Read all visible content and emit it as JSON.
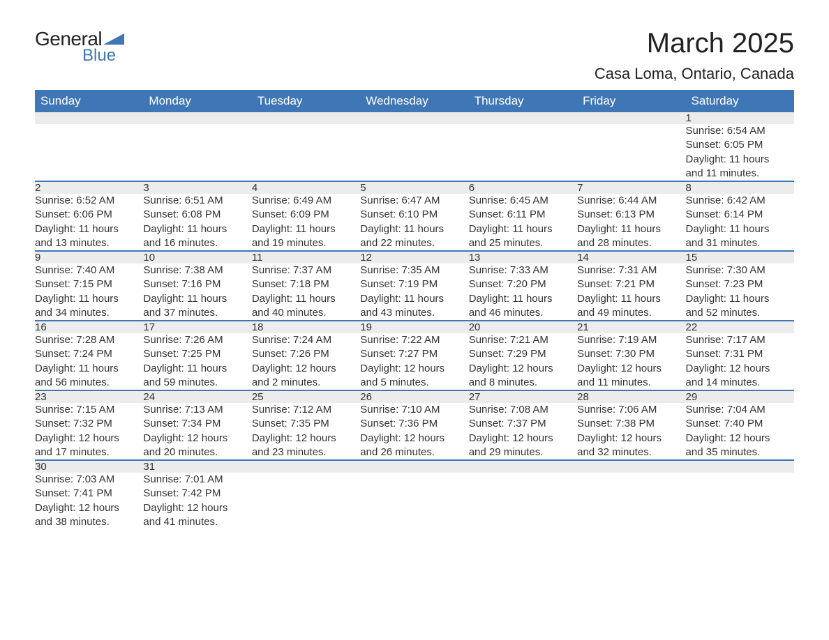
{
  "logo": {
    "general": "General",
    "blue": "Blue",
    "triangle_color": "#3f76b5"
  },
  "title": {
    "month": "March 2025",
    "location": "Casa Loma, Ontario, Canada"
  },
  "calendar": {
    "header_bg": "#3f76b5",
    "header_fg": "#ffffff",
    "row_border_color": "#3f76b5",
    "daynum_bg": "#ececec",
    "text_color": "#333333",
    "days_of_week": [
      "Sunday",
      "Monday",
      "Tuesday",
      "Wednesday",
      "Thursday",
      "Friday",
      "Saturday"
    ],
    "weeks": [
      [
        null,
        null,
        null,
        null,
        null,
        null,
        {
          "n": "1",
          "sunrise": "Sunrise: 6:54 AM",
          "sunset": "Sunset: 6:05 PM",
          "dl1": "Daylight: 11 hours",
          "dl2": "and 11 minutes."
        }
      ],
      [
        {
          "n": "2",
          "sunrise": "Sunrise: 6:52 AM",
          "sunset": "Sunset: 6:06 PM",
          "dl1": "Daylight: 11 hours",
          "dl2": "and 13 minutes."
        },
        {
          "n": "3",
          "sunrise": "Sunrise: 6:51 AM",
          "sunset": "Sunset: 6:08 PM",
          "dl1": "Daylight: 11 hours",
          "dl2": "and 16 minutes."
        },
        {
          "n": "4",
          "sunrise": "Sunrise: 6:49 AM",
          "sunset": "Sunset: 6:09 PM",
          "dl1": "Daylight: 11 hours",
          "dl2": "and 19 minutes."
        },
        {
          "n": "5",
          "sunrise": "Sunrise: 6:47 AM",
          "sunset": "Sunset: 6:10 PM",
          "dl1": "Daylight: 11 hours",
          "dl2": "and 22 minutes."
        },
        {
          "n": "6",
          "sunrise": "Sunrise: 6:45 AM",
          "sunset": "Sunset: 6:11 PM",
          "dl1": "Daylight: 11 hours",
          "dl2": "and 25 minutes."
        },
        {
          "n": "7",
          "sunrise": "Sunrise: 6:44 AM",
          "sunset": "Sunset: 6:13 PM",
          "dl1": "Daylight: 11 hours",
          "dl2": "and 28 minutes."
        },
        {
          "n": "8",
          "sunrise": "Sunrise: 6:42 AM",
          "sunset": "Sunset: 6:14 PM",
          "dl1": "Daylight: 11 hours",
          "dl2": "and 31 minutes."
        }
      ],
      [
        {
          "n": "9",
          "sunrise": "Sunrise: 7:40 AM",
          "sunset": "Sunset: 7:15 PM",
          "dl1": "Daylight: 11 hours",
          "dl2": "and 34 minutes."
        },
        {
          "n": "10",
          "sunrise": "Sunrise: 7:38 AM",
          "sunset": "Sunset: 7:16 PM",
          "dl1": "Daylight: 11 hours",
          "dl2": "and 37 minutes."
        },
        {
          "n": "11",
          "sunrise": "Sunrise: 7:37 AM",
          "sunset": "Sunset: 7:18 PM",
          "dl1": "Daylight: 11 hours",
          "dl2": "and 40 minutes."
        },
        {
          "n": "12",
          "sunrise": "Sunrise: 7:35 AM",
          "sunset": "Sunset: 7:19 PM",
          "dl1": "Daylight: 11 hours",
          "dl2": "and 43 minutes."
        },
        {
          "n": "13",
          "sunrise": "Sunrise: 7:33 AM",
          "sunset": "Sunset: 7:20 PM",
          "dl1": "Daylight: 11 hours",
          "dl2": "and 46 minutes."
        },
        {
          "n": "14",
          "sunrise": "Sunrise: 7:31 AM",
          "sunset": "Sunset: 7:21 PM",
          "dl1": "Daylight: 11 hours",
          "dl2": "and 49 minutes."
        },
        {
          "n": "15",
          "sunrise": "Sunrise: 7:30 AM",
          "sunset": "Sunset: 7:23 PM",
          "dl1": "Daylight: 11 hours",
          "dl2": "and 52 minutes."
        }
      ],
      [
        {
          "n": "16",
          "sunrise": "Sunrise: 7:28 AM",
          "sunset": "Sunset: 7:24 PM",
          "dl1": "Daylight: 11 hours",
          "dl2": "and 56 minutes."
        },
        {
          "n": "17",
          "sunrise": "Sunrise: 7:26 AM",
          "sunset": "Sunset: 7:25 PM",
          "dl1": "Daylight: 11 hours",
          "dl2": "and 59 minutes."
        },
        {
          "n": "18",
          "sunrise": "Sunrise: 7:24 AM",
          "sunset": "Sunset: 7:26 PM",
          "dl1": "Daylight: 12 hours",
          "dl2": "and 2 minutes."
        },
        {
          "n": "19",
          "sunrise": "Sunrise: 7:22 AM",
          "sunset": "Sunset: 7:27 PM",
          "dl1": "Daylight: 12 hours",
          "dl2": "and 5 minutes."
        },
        {
          "n": "20",
          "sunrise": "Sunrise: 7:21 AM",
          "sunset": "Sunset: 7:29 PM",
          "dl1": "Daylight: 12 hours",
          "dl2": "and 8 minutes."
        },
        {
          "n": "21",
          "sunrise": "Sunrise: 7:19 AM",
          "sunset": "Sunset: 7:30 PM",
          "dl1": "Daylight: 12 hours",
          "dl2": "and 11 minutes."
        },
        {
          "n": "22",
          "sunrise": "Sunrise: 7:17 AM",
          "sunset": "Sunset: 7:31 PM",
          "dl1": "Daylight: 12 hours",
          "dl2": "and 14 minutes."
        }
      ],
      [
        {
          "n": "23",
          "sunrise": "Sunrise: 7:15 AM",
          "sunset": "Sunset: 7:32 PM",
          "dl1": "Daylight: 12 hours",
          "dl2": "and 17 minutes."
        },
        {
          "n": "24",
          "sunrise": "Sunrise: 7:13 AM",
          "sunset": "Sunset: 7:34 PM",
          "dl1": "Daylight: 12 hours",
          "dl2": "and 20 minutes."
        },
        {
          "n": "25",
          "sunrise": "Sunrise: 7:12 AM",
          "sunset": "Sunset: 7:35 PM",
          "dl1": "Daylight: 12 hours",
          "dl2": "and 23 minutes."
        },
        {
          "n": "26",
          "sunrise": "Sunrise: 7:10 AM",
          "sunset": "Sunset: 7:36 PM",
          "dl1": "Daylight: 12 hours",
          "dl2": "and 26 minutes."
        },
        {
          "n": "27",
          "sunrise": "Sunrise: 7:08 AM",
          "sunset": "Sunset: 7:37 PM",
          "dl1": "Daylight: 12 hours",
          "dl2": "and 29 minutes."
        },
        {
          "n": "28",
          "sunrise": "Sunrise: 7:06 AM",
          "sunset": "Sunset: 7:38 PM",
          "dl1": "Daylight: 12 hours",
          "dl2": "and 32 minutes."
        },
        {
          "n": "29",
          "sunrise": "Sunrise: 7:04 AM",
          "sunset": "Sunset: 7:40 PM",
          "dl1": "Daylight: 12 hours",
          "dl2": "and 35 minutes."
        }
      ],
      [
        {
          "n": "30",
          "sunrise": "Sunrise: 7:03 AM",
          "sunset": "Sunset: 7:41 PM",
          "dl1": "Daylight: 12 hours",
          "dl2": "and 38 minutes."
        },
        {
          "n": "31",
          "sunrise": "Sunrise: 7:01 AM",
          "sunset": "Sunset: 7:42 PM",
          "dl1": "Daylight: 12 hours",
          "dl2": "and 41 minutes."
        },
        null,
        null,
        null,
        null,
        null
      ]
    ]
  }
}
